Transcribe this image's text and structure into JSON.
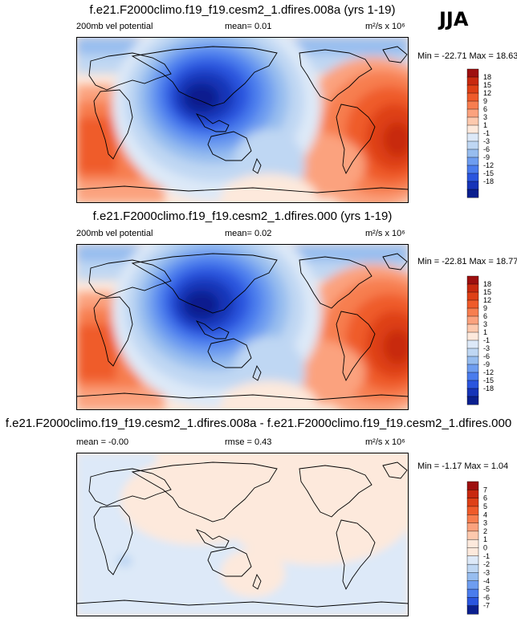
{
  "season": "JJA",
  "panels": [
    {
      "title": "f.e21.F2000climo.f19_f19.cesm2_1.dfires.008a (yrs 1-19)",
      "left_label": "200mb vel potential",
      "center_label": "mean=  0.01",
      "units": "m²/s x 10⁶",
      "minmax": "Min = -22.71 Max = 18.63"
    },
    {
      "title": "f.e21.F2000climo.f19_f19.cesm2_1.dfires.000 (yrs 1-19)",
      "left_label": "200mb vel potential",
      "center_label": "mean=  0.02",
      "units": "m²/s x 10⁶",
      "minmax": "Min = -22.81 Max = 18.77"
    },
    {
      "title": "f.e21.F2000climo.f19_f19.cesm2_1.dfires.008a - f.e21.F2000climo.f19_f19.cesm2_1.dfires.000",
      "left_label": "mean = -0.00",
      "center_label": "rmse =  0.43",
      "units": "m²/s x 10⁶",
      "minmax": "Min = -1.17 Max =  1.04"
    }
  ],
  "chart_data": [
    {
      "type": "heatmap",
      "levels": [
        "18",
        "15",
        "12",
        "9",
        "6",
        "3",
        "1",
        "-1",
        "-3",
        "-6",
        "-9",
        "-12",
        "-15",
        "-18"
      ],
      "colors": [
        "#9e0f0f",
        "#c8290f",
        "#de4016",
        "#ef5b2a",
        "#f77e4f",
        "#fba27e",
        "#fdc9ae",
        "#fde9dc",
        "#dde9f8",
        "#bfd7f3",
        "#97bdef",
        "#6e9df0",
        "#4a7ced",
        "#2a55de",
        "#1634b8",
        "#0a1f8e"
      ],
      "data_range": [
        -22.71,
        18.63
      ]
    },
    {
      "type": "heatmap",
      "levels": [
        "18",
        "15",
        "12",
        "9",
        "6",
        "3",
        "1",
        "-1",
        "-3",
        "-6",
        "-9",
        "-12",
        "-15",
        "-18"
      ],
      "colors": [
        "#9e0f0f",
        "#c8290f",
        "#de4016",
        "#ef5b2a",
        "#f77e4f",
        "#fba27e",
        "#fdc9ae",
        "#fde9dc",
        "#dde9f8",
        "#bfd7f3",
        "#97bdef",
        "#6e9df0",
        "#4a7ced",
        "#2a55de",
        "#1634b8",
        "#0a1f8e"
      ],
      "data_range": [
        -22.81,
        18.77
      ]
    },
    {
      "type": "heatmap",
      "levels": [
        "7",
        "6",
        "5",
        "4",
        "3",
        "2",
        "1",
        "0",
        "-1",
        "-2",
        "-3",
        "-4",
        "-5",
        "-6",
        "-7"
      ],
      "colors": [
        "#9e0f0f",
        "#c8290f",
        "#de4016",
        "#ef5b2a",
        "#f77e4f",
        "#fba27e",
        "#fdc9ae",
        "#fde9dc",
        "#fde9dc",
        "#dde9f8",
        "#bfd7f3",
        "#97bdef",
        "#6e9df0",
        "#4a7ced",
        "#2a55de",
        "#0a1f8e"
      ],
      "data_range": [
        -1.17,
        1.04
      ]
    }
  ]
}
